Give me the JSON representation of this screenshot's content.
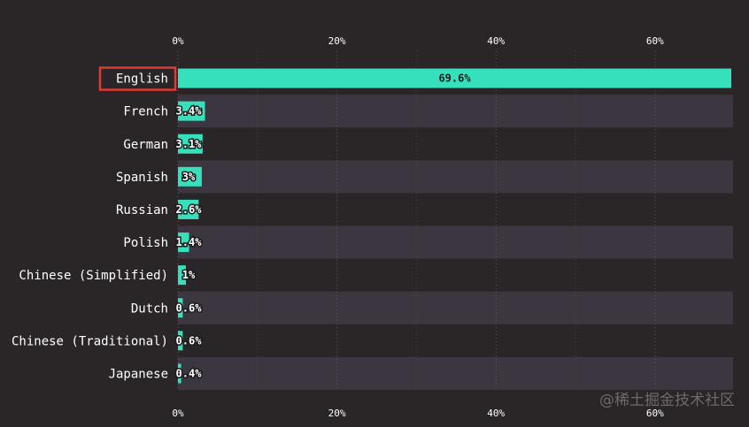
{
  "chart_data": {
    "type": "bar",
    "orientation": "horizontal",
    "categories": [
      "English",
      "French",
      "German",
      "Spanish",
      "Russian",
      "Polish",
      "Chinese (Simplified)",
      "Dutch",
      "Chinese (Traditional)",
      "Japanese"
    ],
    "values": [
      69.6,
      3.4,
      3.1,
      3,
      2.6,
      1.4,
      1,
      0.6,
      0.6,
      0.4
    ],
    "value_labels": [
      "69.6%",
      "3.4%",
      "3.1%",
      "3%",
      "2.6%",
      "1.4%",
      "1%",
      "0.6%",
      "0.6%",
      "0.4%"
    ],
    "xticks": [
      "0%",
      "20%",
      "40%",
      "60%"
    ],
    "xtick_values": [
      0,
      20,
      40,
      60
    ],
    "xlim": [
      0,
      70
    ],
    "highlighted_category": "English",
    "ticks_position": "top and bottom",
    "grid": true
  },
  "colors": {
    "background": "#2a2627",
    "bar": "#36e0bc",
    "stripe": "#3c3640",
    "text": "#ffffff",
    "tick_text": "#ffffff",
    "highlight_box": "#e03a34"
  },
  "watermark": "@稀土掘金技术社区"
}
